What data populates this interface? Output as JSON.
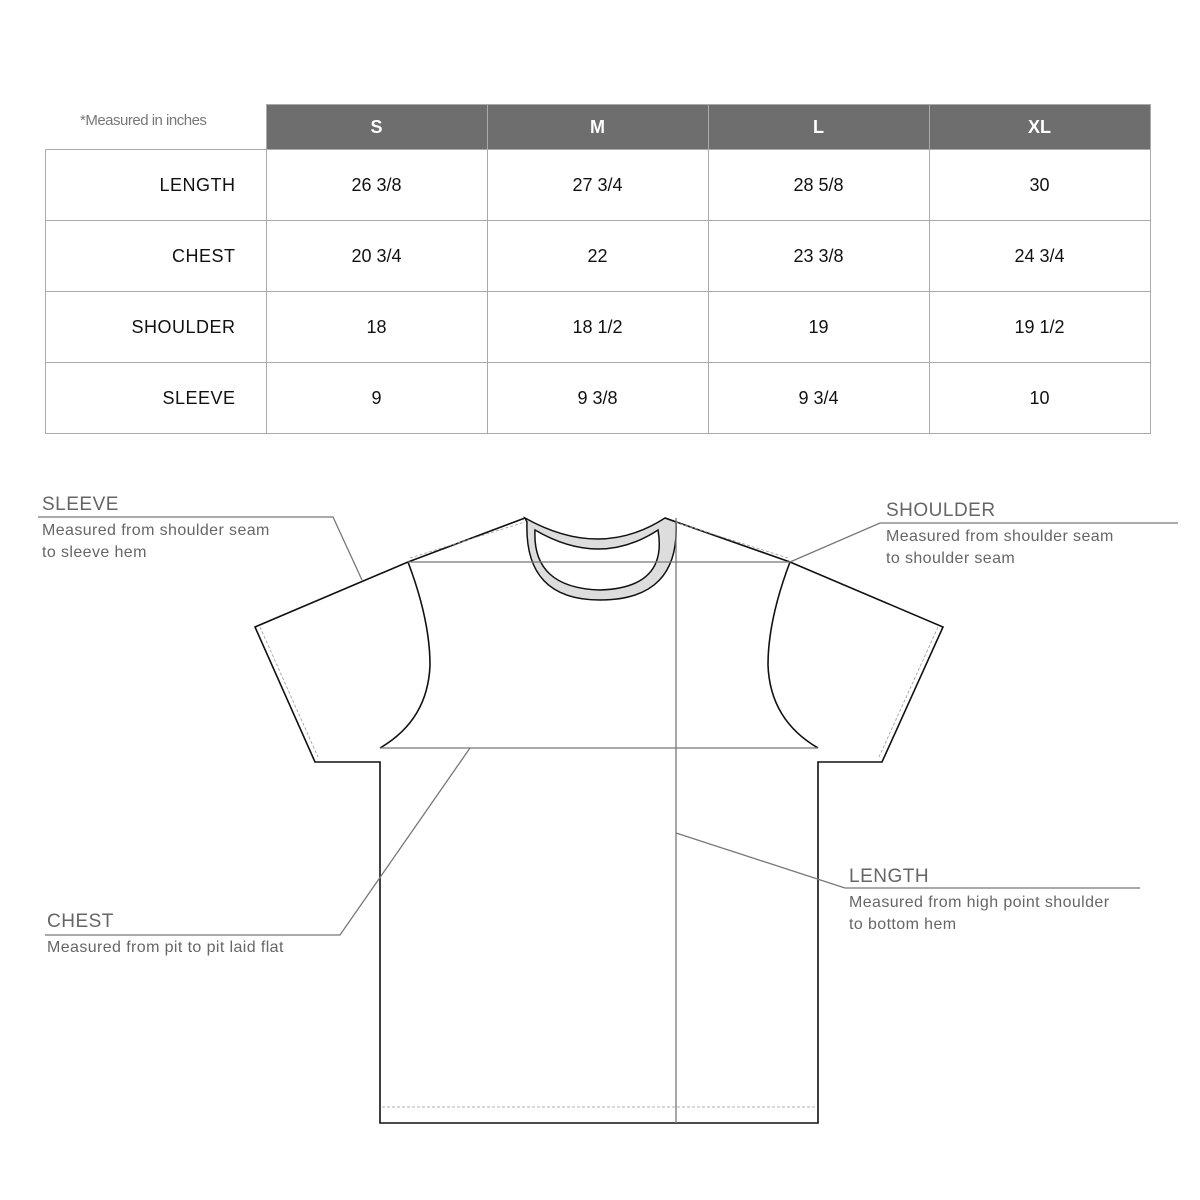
{
  "note": "*Measured in inches",
  "table": {
    "sizes": [
      "S",
      "M",
      "L",
      "XL"
    ],
    "rows": [
      {
        "label": "LENGTH",
        "values": [
          "26 3/8",
          "27 3/4",
          "28 5/8",
          "30"
        ]
      },
      {
        "label": "CHEST",
        "values": [
          "20 3/4",
          "22",
          "23 3/8",
          "24 3/4"
        ]
      },
      {
        "label": "SHOULDER",
        "values": [
          "18",
          "18 1/2",
          "19",
          "19 1/2"
        ]
      },
      {
        "label": "SLEEVE",
        "values": [
          "9",
          "9 3/8",
          "9 3/4",
          "10"
        ]
      }
    ],
    "header_color": "#6e6e6e"
  },
  "callouts": {
    "sleeve": {
      "title": "SLEEVE",
      "line1": "Measured from shoulder seam",
      "line2": "to sleeve hem"
    },
    "shoulder": {
      "title": "SHOULDER",
      "line1": "Measured from shoulder seam",
      "line2": "to shoulder seam"
    },
    "chest": {
      "title": "CHEST",
      "line1": "Measured from pit to pit laid flat"
    },
    "length": {
      "title": "LENGTH",
      "line1": "Measured from high point shoulder",
      "line2": "to bottom hem"
    }
  }
}
